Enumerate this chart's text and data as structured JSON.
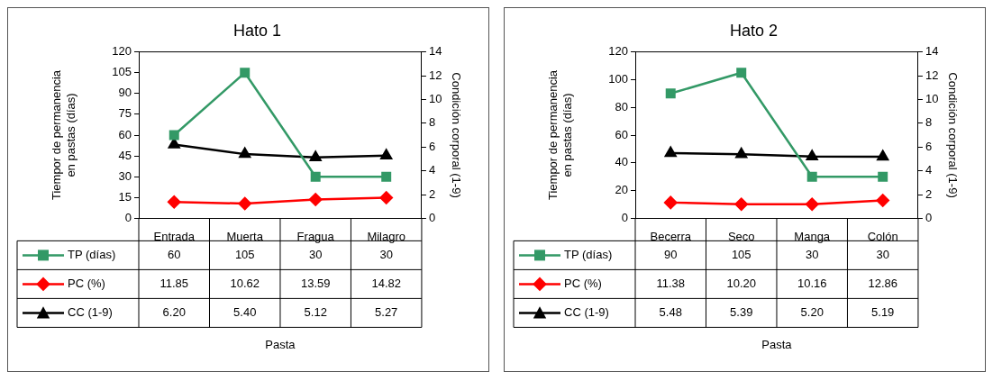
{
  "chart_data": [
    {
      "type": "line",
      "title": "Hato 1",
      "xlabel": "Pasta",
      "ylabel": "Tiempor de permanencia en pastas (días)",
      "y2label": "Condición corporal (1-9)",
      "categories": [
        "Entrada",
        "Muerta",
        "Fragua",
        "Milagro"
      ],
      "ylim": [
        0,
        120
      ],
      "yticks": [
        0,
        15,
        30,
        45,
        60,
        75,
        90,
        105,
        120
      ],
      "y2lim": [
        0,
        14
      ],
      "y2ticks": [
        0,
        2,
        4,
        6,
        8,
        10,
        12,
        14
      ],
      "legend": "bottom",
      "data_labels": true,
      "series": [
        {
          "name": "TP (días)",
          "color": "#339966",
          "marker": "square",
          "values": [
            60,
            105,
            30,
            30
          ],
          "value_labels": [
            "60",
            "105",
            "30",
            "30"
          ]
        },
        {
          "name": "PC (%)",
          "color": "#ff0000",
          "marker": "diamond",
          "values": [
            11.85,
            10.62,
            13.59,
            14.82
          ],
          "value_labels": [
            "11.85",
            "10.62",
            "13.59",
            "14.82"
          ]
        },
        {
          "name": "CC (1-9)",
          "color": "#000000",
          "marker": "triangle",
          "axis": "y2",
          "values": [
            6.2,
            5.4,
            5.12,
            5.27
          ],
          "value_labels": [
            "6.20",
            "5.40",
            "5.12",
            "5.27"
          ]
        }
      ]
    },
    {
      "type": "line",
      "title": "Hato 2",
      "xlabel": "Pasta",
      "ylabel": "Tiempor de permanencia en pastas (días)",
      "y2label": "Condición corporal (1-9)",
      "categories": [
        "Becerra",
        "Seco",
        "Manga",
        "Colón"
      ],
      "ylim": [
        0,
        120
      ],
      "yticks": [
        0,
        20,
        40,
        60,
        80,
        100,
        120
      ],
      "y2lim": [
        0,
        14
      ],
      "y2ticks": [
        0,
        2,
        4,
        6,
        8,
        10,
        12,
        14
      ],
      "legend": "bottom",
      "data_labels": true,
      "series": [
        {
          "name": "TP (días)",
          "color": "#339966",
          "marker": "square",
          "values": [
            90,
            105,
            30,
            30
          ],
          "value_labels": [
            "90",
            "105",
            "30",
            "30"
          ]
        },
        {
          "name": "PC (%)",
          "color": "#ff0000",
          "marker": "diamond",
          "values": [
            11.38,
            10.2,
            10.16,
            12.86
          ],
          "value_labels": [
            "11.38",
            "10.20",
            "10.16",
            "12.86"
          ]
        },
        {
          "name": "CC (1-9)",
          "color": "#000000",
          "marker": "triangle",
          "axis": "y2",
          "values": [
            5.48,
            5.39,
            5.2,
            5.19
          ],
          "value_labels": [
            "5.48",
            "5.39",
            "5.20",
            "5.19"
          ]
        }
      ]
    }
  ]
}
